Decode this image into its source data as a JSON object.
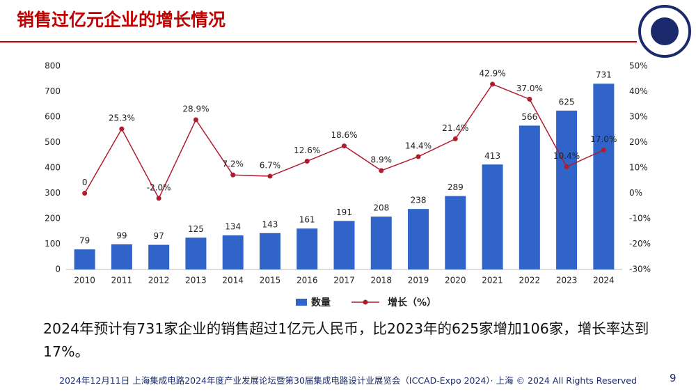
{
  "chart_data": {
    "type": "bar-line",
    "title": "销售过亿元企业的增长情况",
    "categories": [
      "2010",
      "2011",
      "2012",
      "2013",
      "2014",
      "2015",
      "2016",
      "2017",
      "2018",
      "2019",
      "2020",
      "2021",
      "2022",
      "2023",
      "2024"
    ],
    "series": [
      {
        "name": "数量",
        "type": "bar",
        "color": "#3064c8",
        "values": [
          79,
          99,
          97,
          125,
          134,
          143,
          161,
          191,
          208,
          238,
          289,
          413,
          566,
          625,
          731
        ]
      },
      {
        "name": "增长（%）",
        "type": "line",
        "axis": "y2",
        "color": "#b01c2e",
        "values": [
          0,
          25.3,
          -2.0,
          28.9,
          7.2,
          6.7,
          12.6,
          18.6,
          8.9,
          14.4,
          21.4,
          42.9,
          37.0,
          10.4,
          17.0
        ],
        "value_labels": [
          "0",
          "25.3%",
          "-2.0%",
          "28.9%",
          "7.2%",
          "6.7%",
          "12.6%",
          "18.6%",
          "8.9%",
          "14.4%",
          "21.4%",
          "42.9%",
          "37.0%",
          "10.4%",
          "17.0%"
        ]
      }
    ],
    "ylim": [
      0,
      800
    ],
    "yticks": [
      0,
      100,
      200,
      300,
      400,
      500,
      600,
      700,
      800
    ],
    "y2lim": [
      -30,
      50
    ],
    "y2ticks": [
      {
        "value": -30,
        "label": "-30%"
      },
      {
        "value": -20,
        "label": "-20%"
      },
      {
        "value": -10,
        "label": "-10%"
      },
      {
        "value": 0,
        "label": "0%"
      },
      {
        "value": 10,
        "label": "10%"
      },
      {
        "value": 20,
        "label": "20%"
      },
      {
        "value": 30,
        "label": "30%"
      },
      {
        "value": 40,
        "label": "40%"
      },
      {
        "value": 50,
        "label": "50%"
      }
    ],
    "grid": false,
    "legend": "bottom"
  },
  "body_text": "2024年预计有731家企业的销售超过1亿元人民币，比2023年的625家增加106家，增长率达到17%。",
  "footer": "2024年12月11日 上海集成电路2024年度产业发展论坛暨第30届集成电路设计业展览会（ICCAD-Expo 2024）· 上海 © 2024 All Rights Reserved",
  "page_number": "9"
}
